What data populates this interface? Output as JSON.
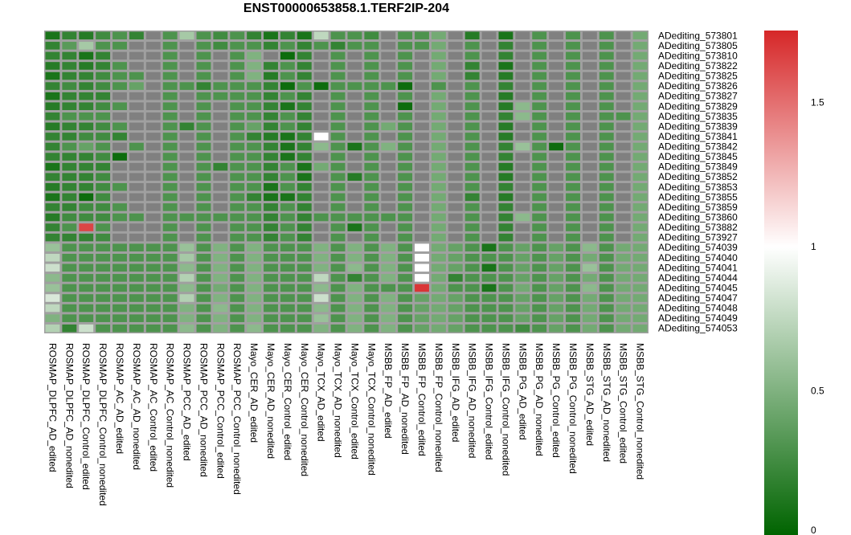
{
  "chart_data": {
    "type": "heatmap",
    "title": "ENST00000653858.1.TERF2IP-204",
    "columns": [
      "ROSMAP_DLPFC_AD_edited",
      "ROSMAP_DLPFC_AD_nonedited",
      "ROSMAP_DLPFC_Control_edited",
      "ROSMAP_DLPFC_Control_nonedited",
      "ROSMAP_AC_AD_edited",
      "ROSMAP_AC_AD_nonedited",
      "ROSMAP_AC_Control_edited",
      "ROSMAP_AC_Control_nonedited",
      "ROSMAP_PCC_AD_edited",
      "ROSMAP_PCC_AD_nonedited",
      "ROSMAP_PCC_Control_edited",
      "ROSMAP_PCC_Control_nonedited",
      "Mayo_CER_AD_edited",
      "Mayo_CER_AD_nonedited",
      "Mayo_CER_Control_edited",
      "Mayo_CER_Control_nonedited",
      "Mayo_TCX_AD_edited",
      "Mayo_TCX_AD_nonedited",
      "Mayo_TCX_Control_edited",
      "Mayo_TCX_Control_nonedited",
      "MSBB_FP_AD_edited",
      "MSBB_FP_AD_nonedited",
      "MSBB_FP_Control_edited",
      "MSBB_FP_Control_nonedited",
      "MSBB_IFG_AD_edited",
      "MSBB_IFG_AD_nonedited",
      "MSBB_IFG_Control_edited",
      "MSBB_IFG_Control_nonedited",
      "MSBB_PG_AD_edited",
      "MSBB_PG_AD_nonedited",
      "MSBB_PG_Control_edited",
      "MSBB_PG_Control_nonedited",
      "MSBB_STG_AD_edited",
      "MSBB_STG_AD_nonedited",
      "MSBB_STG_Control_edited",
      "MSBB_STG_Control_nonedited"
    ],
    "rows": [
      "ADediting_573801",
      "ADediting_573805",
      "ADediting_573810",
      "ADediting_573822",
      "ADediting_573825",
      "ADediting_573826",
      "ADediting_573827",
      "ADediting_573829",
      "ADediting_573835",
      "ADediting_573839",
      "ADediting_573841",
      "ADediting_573842",
      "ADediting_573845",
      "ADediting_573849",
      "ADediting_573852",
      "ADediting_573853",
      "ADediting_573855",
      "ADediting_573859",
      "ADediting_573860",
      "ADediting_573882",
      "ADediting_573927",
      "ADediting_574039",
      "ADediting_574040",
      "ADediting_574041",
      "ADediting_574044",
      "ADediting_574045",
      "ADediting_574047",
      "ADediting_574048",
      "ADediting_574049",
      "ADediting_574053"
    ],
    "values": [
      [
        0.1,
        0.2,
        0.15,
        0.25,
        0.3,
        0.2,
        null,
        0.3,
        0.65,
        0.3,
        0.25,
        0.3,
        0.2,
        0.1,
        0.2,
        0.1,
        0.75,
        0.3,
        0.3,
        0.25,
        null,
        0.3,
        0.3,
        0.45,
        null,
        0.15,
        null,
        0.1,
        null,
        0.3,
        null,
        0.3,
        null,
        0.3,
        null,
        0.45
      ],
      [
        0.2,
        0.35,
        0.65,
        0.3,
        0.3,
        null,
        null,
        0.3,
        null,
        0.3,
        0.25,
        0.3,
        0.3,
        0.2,
        0.3,
        0.2,
        0.3,
        0.2,
        0.3,
        0.3,
        null,
        0.3,
        0.3,
        0.45,
        null,
        0.3,
        null,
        0.2,
        null,
        0.3,
        null,
        0.3,
        null,
        0.3,
        null,
        0.45
      ],
      [
        0.2,
        0.2,
        0.1,
        0.2,
        null,
        null,
        null,
        0.3,
        null,
        0.3,
        null,
        0.3,
        0.5,
        null,
        0.05,
        0.2,
        null,
        0.3,
        null,
        0.3,
        null,
        0.3,
        null,
        0.45,
        null,
        0.3,
        null,
        0.2,
        null,
        0.3,
        null,
        0.3,
        null,
        0.3,
        null,
        0.45
      ],
      [
        0.15,
        0.2,
        0.15,
        0.2,
        0.3,
        null,
        null,
        0.3,
        null,
        0.3,
        null,
        0.3,
        0.5,
        0.2,
        0.3,
        0.2,
        null,
        0.3,
        null,
        0.3,
        null,
        0.3,
        null,
        0.45,
        null,
        0.2,
        null,
        0.1,
        null,
        0.3,
        null,
        0.3,
        null,
        0.3,
        null,
        0.45
      ],
      [
        0.1,
        0.2,
        0.2,
        0.25,
        0.3,
        0.3,
        null,
        0.3,
        null,
        0.3,
        null,
        0.3,
        0.5,
        0.15,
        0.3,
        0.2,
        null,
        0.3,
        null,
        0.3,
        null,
        0.3,
        null,
        0.45,
        null,
        0.2,
        null,
        0.15,
        null,
        0.3,
        null,
        0.3,
        null,
        0.3,
        null,
        0.45
      ],
      [
        0.2,
        0.25,
        0.2,
        0.25,
        0.3,
        0.4,
        null,
        0.3,
        0.3,
        0.2,
        0.3,
        0.3,
        0.3,
        0.2,
        0.05,
        0.3,
        0.05,
        0.3,
        0.3,
        0.3,
        0.3,
        0.05,
        null,
        0.3,
        null,
        0.3,
        null,
        0.2,
        null,
        0.3,
        null,
        0.3,
        null,
        0.3,
        null,
        0.45
      ],
      [
        0.1,
        0.2,
        0.2,
        0.2,
        null,
        null,
        null,
        0.3,
        null,
        0.3,
        0.3,
        0.3,
        0.3,
        0.2,
        0.3,
        0.2,
        null,
        0.3,
        null,
        0.3,
        null,
        0.3,
        null,
        0.45,
        null,
        0.3,
        null,
        0.15,
        null,
        0.3,
        null,
        0.3,
        null,
        0.3,
        null,
        0.45
      ],
      [
        0.15,
        0.2,
        0.2,
        0.25,
        0.3,
        null,
        null,
        0.3,
        null,
        0.3,
        null,
        0.3,
        0.3,
        0.2,
        0.1,
        0.2,
        null,
        0.3,
        null,
        0.3,
        null,
        0.05,
        null,
        0.45,
        null,
        0.3,
        null,
        0.15,
        0.55,
        0.3,
        null,
        0.3,
        null,
        0.3,
        null,
        0.45
      ],
      [
        0.2,
        0.3,
        0.3,
        0.3,
        null,
        null,
        null,
        0.3,
        null,
        0.3,
        null,
        0.3,
        0.3,
        0.2,
        0.3,
        0.2,
        null,
        0.3,
        null,
        0.3,
        null,
        0.3,
        null,
        0.45,
        null,
        0.3,
        null,
        0.2,
        0.55,
        0.3,
        null,
        0.3,
        null,
        0.3,
        0.3,
        0.45
      ],
      [
        0.15,
        0.2,
        0.2,
        0.25,
        0.3,
        null,
        null,
        0.3,
        0.2,
        0.3,
        null,
        0.3,
        0.4,
        0.2,
        0.3,
        0.2,
        null,
        0.3,
        null,
        0.3,
        0.45,
        0.3,
        null,
        0.45,
        null,
        0.3,
        null,
        0.15,
        null,
        0.3,
        null,
        0.3,
        null,
        0.3,
        null,
        0.45
      ],
      [
        0.2,
        0.2,
        0.25,
        0.25,
        0.2,
        null,
        null,
        0.3,
        null,
        0.3,
        null,
        0.3,
        0.2,
        0.15,
        0.1,
        0.2,
        1.0,
        0.3,
        null,
        0.3,
        null,
        0.3,
        null,
        0.45,
        null,
        0.3,
        null,
        0.15,
        null,
        0.3,
        null,
        0.3,
        null,
        0.3,
        null,
        0.45
      ],
      [
        0.2,
        0.3,
        0.4,
        0.3,
        null,
        0.3,
        null,
        0.3,
        null,
        0.3,
        null,
        0.3,
        0.3,
        0.2,
        0.1,
        0.2,
        0.55,
        0.3,
        0.1,
        0.3,
        0.5,
        0.3,
        null,
        0.45,
        null,
        0.3,
        null,
        0.2,
        0.6,
        0.3,
        0.05,
        0.3,
        null,
        0.3,
        null,
        0.45
      ],
      [
        0.2,
        0.2,
        0.2,
        0.25,
        0.05,
        null,
        null,
        0.3,
        null,
        0.3,
        null,
        0.3,
        0.3,
        0.2,
        0.1,
        0.2,
        null,
        0.3,
        null,
        0.3,
        null,
        0.3,
        null,
        0.45,
        null,
        0.3,
        null,
        0.2,
        null,
        0.3,
        null,
        0.3,
        null,
        0.3,
        null,
        0.45
      ],
      [
        0.1,
        0.2,
        0.2,
        0.2,
        null,
        null,
        null,
        0.3,
        null,
        0.3,
        0.2,
        0.3,
        0.3,
        0.2,
        0.3,
        0.1,
        0.45,
        0.3,
        null,
        0.3,
        null,
        0.3,
        null,
        0.45,
        null,
        0.3,
        null,
        0.15,
        null,
        0.3,
        null,
        0.3,
        null,
        0.3,
        null,
        0.45
      ],
      [
        0.2,
        0.2,
        0.2,
        0.25,
        null,
        null,
        null,
        0.3,
        null,
        0.3,
        null,
        0.3,
        0.3,
        0.2,
        0.3,
        0.1,
        null,
        0.3,
        0.15,
        0.3,
        null,
        0.3,
        null,
        0.45,
        null,
        0.3,
        null,
        0.15,
        null,
        0.3,
        null,
        0.3,
        null,
        0.3,
        null,
        0.45
      ],
      [
        0.15,
        0.2,
        0.2,
        0.25,
        0.3,
        null,
        null,
        0.3,
        null,
        0.3,
        null,
        0.3,
        0.3,
        0.1,
        0.3,
        0.2,
        null,
        0.3,
        null,
        0.3,
        null,
        0.3,
        null,
        0.45,
        null,
        0.3,
        null,
        0.2,
        null,
        0.3,
        null,
        0.3,
        null,
        0.3,
        null,
        0.45
      ],
      [
        0.1,
        0.2,
        0.05,
        0.25,
        null,
        null,
        null,
        0.3,
        null,
        0.3,
        null,
        0.3,
        0.2,
        0.1,
        0.1,
        0.2,
        null,
        0.3,
        null,
        0.3,
        null,
        0.3,
        null,
        0.45,
        null,
        0.2,
        null,
        0.15,
        null,
        0.3,
        null,
        0.3,
        null,
        0.3,
        null,
        0.45
      ],
      [
        0.2,
        0.2,
        0.25,
        0.25,
        0.3,
        null,
        null,
        0.3,
        null,
        0.3,
        null,
        0.3,
        0.3,
        0.2,
        0.3,
        0.2,
        null,
        0.3,
        null,
        0.3,
        null,
        0.3,
        null,
        0.45,
        null,
        0.3,
        null,
        0.2,
        null,
        0.3,
        null,
        0.3,
        null,
        0.3,
        null,
        0.45
      ],
      [
        0.15,
        0.25,
        0.25,
        0.25,
        0.3,
        0.3,
        null,
        0.3,
        0.3,
        0.3,
        0.3,
        0.3,
        0.3,
        0.2,
        0.3,
        0.2,
        0.3,
        0.3,
        0.3,
        0.3,
        0.3,
        0.3,
        null,
        0.45,
        null,
        0.3,
        null,
        0.2,
        0.55,
        0.3,
        null,
        0.3,
        null,
        0.3,
        null,
        0.45
      ],
      [
        0.2,
        0.3,
        1.65,
        0.3,
        null,
        null,
        null,
        0.3,
        null,
        0.3,
        null,
        0.3,
        0.3,
        0.2,
        0.3,
        0.2,
        null,
        0.3,
        0.1,
        0.3,
        null,
        0.3,
        null,
        0.45,
        null,
        0.3,
        null,
        0.2,
        null,
        0.3,
        null,
        0.3,
        null,
        0.3,
        null,
        0.45
      ],
      [
        0.2,
        0.2,
        0.2,
        0.25,
        null,
        null,
        null,
        0.3,
        null,
        0.3,
        null,
        0.3,
        0.3,
        0.2,
        0.3,
        0.2,
        null,
        0.3,
        null,
        0.3,
        null,
        0.3,
        null,
        0.45,
        null,
        0.3,
        null,
        0.2,
        null,
        0.3,
        null,
        0.3,
        null,
        0.3,
        null,
        0.45
      ],
      [
        0.6,
        0.3,
        0.3,
        0.3,
        0.3,
        0.3,
        0.3,
        0.3,
        0.6,
        0.3,
        0.5,
        0.3,
        0.5,
        0.3,
        0.3,
        0.3,
        0.5,
        0.3,
        0.5,
        0.3,
        0.5,
        0.3,
        1.0,
        0.45,
        0.4,
        0.3,
        0.1,
        0.3,
        0.4,
        0.3,
        0.4,
        0.3,
        0.55,
        0.3,
        0.45,
        0.45
      ],
      [
        0.75,
        0.3,
        0.3,
        0.3,
        0.3,
        0.3,
        0.3,
        0.3,
        0.65,
        0.3,
        0.5,
        0.3,
        0.5,
        0.3,
        0.3,
        0.3,
        0.5,
        0.3,
        0.5,
        0.3,
        0.5,
        0.3,
        1.0,
        0.45,
        0.4,
        0.3,
        0.3,
        0.3,
        0.4,
        0.3,
        0.4,
        0.3,
        0.45,
        0.3,
        0.45,
        0.45
      ],
      [
        0.8,
        0.3,
        0.3,
        0.3,
        0.3,
        0.3,
        0.3,
        0.3,
        0.55,
        0.3,
        0.5,
        0.3,
        0.5,
        0.3,
        0.3,
        0.3,
        0.5,
        0.3,
        0.55,
        0.3,
        0.5,
        0.3,
        1.0,
        0.45,
        0.4,
        0.3,
        0.1,
        0.3,
        0.4,
        0.3,
        0.4,
        0.3,
        0.6,
        0.3,
        0.45,
        0.45
      ],
      [
        0.55,
        0.3,
        0.3,
        0.3,
        0.3,
        0.3,
        0.3,
        0.3,
        0.7,
        0.3,
        0.5,
        0.3,
        0.5,
        0.3,
        0.3,
        0.3,
        0.75,
        0.3,
        0.2,
        0.3,
        0.5,
        0.3,
        1.0,
        0.45,
        0.2,
        0.3,
        0.3,
        0.3,
        0.4,
        0.3,
        0.4,
        0.3,
        0.45,
        0.3,
        0.45,
        0.45
      ],
      [
        0.6,
        0.3,
        0.3,
        0.3,
        0.3,
        0.3,
        0.3,
        0.3,
        0.55,
        0.3,
        0.45,
        0.3,
        0.5,
        0.3,
        0.3,
        0.3,
        0.55,
        0.3,
        0.5,
        0.3,
        0.3,
        0.3,
        1.7,
        0.45,
        0.3,
        0.3,
        0.1,
        0.3,
        0.45,
        0.3,
        0.4,
        0.3,
        0.55,
        0.3,
        0.45,
        0.45
      ],
      [
        0.85,
        0.3,
        0.3,
        0.3,
        0.3,
        0.3,
        0.3,
        0.3,
        0.7,
        0.3,
        0.5,
        0.3,
        0.5,
        0.3,
        0.3,
        0.3,
        0.8,
        0.3,
        0.5,
        0.3,
        0.5,
        0.3,
        0.4,
        0.45,
        0.4,
        0.3,
        0.3,
        0.3,
        0.4,
        0.3,
        0.4,
        0.3,
        0.45,
        0.3,
        0.45,
        0.45
      ],
      [
        0.75,
        0.3,
        0.3,
        0.3,
        0.3,
        0.3,
        0.3,
        0.3,
        0.5,
        0.3,
        0.55,
        0.3,
        0.5,
        0.3,
        0.3,
        0.3,
        0.55,
        0.3,
        0.5,
        0.3,
        0.5,
        0.3,
        0.4,
        0.45,
        0.4,
        0.3,
        0.3,
        0.3,
        0.4,
        0.3,
        0.4,
        0.3,
        0.45,
        0.3,
        0.45,
        0.45
      ],
      [
        0.5,
        0.3,
        0.3,
        0.3,
        0.3,
        0.3,
        0.3,
        0.3,
        0.5,
        0.3,
        0.5,
        0.3,
        0.5,
        0.3,
        0.3,
        0.3,
        0.6,
        0.3,
        0.5,
        0.3,
        0.5,
        0.3,
        0.4,
        0.45,
        0.4,
        0.3,
        0.3,
        0.3,
        0.4,
        0.3,
        0.4,
        0.3,
        0.45,
        0.3,
        0.45,
        0.45
      ],
      [
        0.7,
        0.2,
        0.8,
        0.3,
        0.3,
        0.3,
        0.3,
        0.3,
        0.55,
        0.3,
        0.5,
        0.3,
        0.55,
        0.3,
        0.3,
        0.3,
        0.5,
        0.3,
        0.5,
        0.3,
        0.5,
        0.3,
        0.4,
        0.45,
        0.4,
        0.3,
        0.3,
        0.3,
        0.25,
        0.3,
        0.4,
        0.3,
        0.45,
        0.3,
        0.45,
        0.45
      ]
    ],
    "missing_color": "#808080",
    "color_scale": {
      "low": "#006400",
      "mid": "#ffffff",
      "high": "#d62728",
      "min": 0,
      "mid_value": 1,
      "max": 1.75
    },
    "colorbar_ticks": [
      "0",
      "0.5",
      "1",
      "1.5"
    ],
    "colorbar_tick_values": [
      0,
      0.5,
      1,
      1.5
    ],
    "legend_position": "right"
  }
}
